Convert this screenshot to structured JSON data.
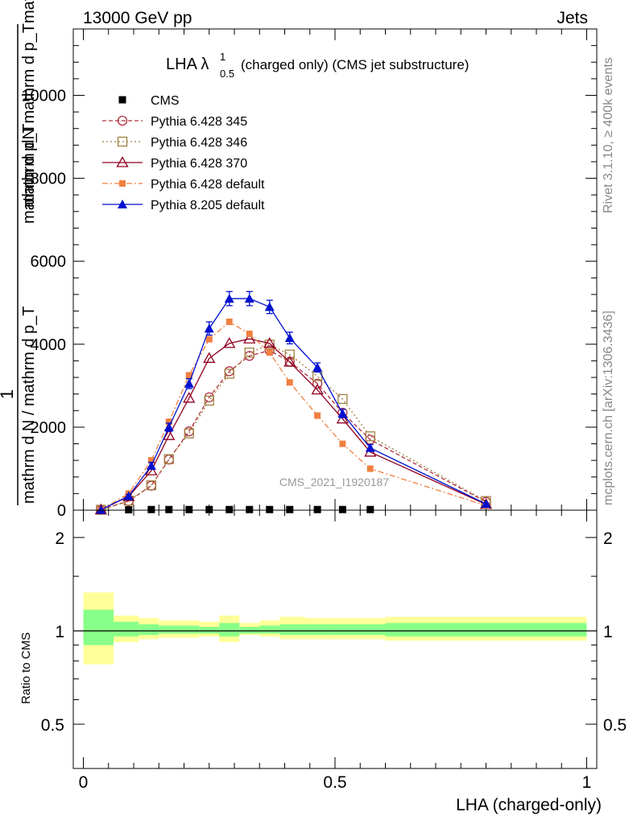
{
  "header": {
    "left": "13000 GeV pp",
    "right": "Jets"
  },
  "side_labels": {
    "rivet": "Rivet 3.1.10, ≥ 400k events",
    "mcplots": "mcplots.cern.ch [arXiv:1306.3436]"
  },
  "watermark": "CMS_2021_I1920187",
  "chart_data": [
    {
      "type": "line",
      "title": "LHA λ¹₀.₅ (charged only) (CMS jet substructure)",
      "title_parts": {
        "prefix": "LHA λ",
        "sup": "1",
        "sub": "0.5",
        "suffix": "(charged only) (CMS jet substructure)"
      },
      "ylabel_top": "mathrm dN",
      "ylabel_top2": "mathrm d p_Tmathrm d p_Tmathrm dlambda",
      "ylabel_mid": "1",
      "ylabel_bottom": "mathrm d N / mathrm d p_T",
      "xlim": [
        -0.02,
        1.02
      ],
      "ylim": [
        0,
        11600
      ],
      "yticks": [
        0,
        2000,
        4000,
        6000,
        8000,
        10000
      ],
      "ytick_labels": [
        "0",
        "2000",
        "4000",
        "6000",
        "8000",
        "10000"
      ],
      "x": [
        0.035,
        0.09,
        0.135,
        0.17,
        0.21,
        0.25,
        0.29,
        0.33,
        0.37,
        0.41,
        0.465,
        0.515,
        0.57,
        0.8
      ],
      "series": [
        {
          "name": "CMS",
          "color": "#000000",
          "marker": "square-filled",
          "dash": "none",
          "values": [
            0,
            10,
            15,
            15,
            15,
            15,
            15,
            15,
            15,
            15,
            15,
            15,
            15,
            0
          ]
        },
        {
          "name": "Pythia 6.428 345",
          "color": "#b03040",
          "marker": "circle-open",
          "dash": "5,3",
          "values": [
            10,
            220,
            590,
            1220,
            1900,
            2720,
            3350,
            3720,
            3850,
            3580,
            3050,
            2350,
            1700,
            200
          ]
        },
        {
          "name": "Pythia 6.428 346",
          "color": "#a08040",
          "marker": "square-open",
          "dash": "2,3",
          "values": [
            10,
            230,
            600,
            1230,
            1850,
            2640,
            3290,
            3800,
            3990,
            3750,
            3230,
            2680,
            1780,
            220
          ]
        },
        {
          "name": "Pythia 6.428 370",
          "color": "#900020",
          "marker": "triangle-open",
          "dash": "none",
          "values": [
            10,
            330,
            950,
            1800,
            2700,
            3660,
            4020,
            4130,
            4020,
            3570,
            2900,
            2200,
            1400,
            140
          ]
        },
        {
          "name": "Pythia 6.428 default",
          "color": "#f08040",
          "marker": "square-filled-small",
          "dash": "7,3,2,3",
          "values": [
            10,
            400,
            1200,
            2130,
            3250,
            4120,
            4540,
            4250,
            3800,
            3080,
            2280,
            1600,
            1000,
            110
          ]
        },
        {
          "name": "Pythia 8.205 default",
          "color": "#0010d0",
          "marker": "triangle-filled",
          "dash": "none",
          "values": [
            10,
            340,
            1070,
            2000,
            3050,
            4380,
            5100,
            5100,
            4900,
            4150,
            3440,
            2330,
            1500,
            150
          ],
          "errors": [
            0,
            40,
            80,
            100,
            120,
            160,
            170,
            170,
            160,
            140,
            110,
            100,
            80,
            20
          ]
        }
      ]
    },
    {
      "type": "area",
      "ylabel": "Ratio to CMS",
      "xlabel": "LHA (charged-only)",
      "xlim": [
        -0.02,
        1.02
      ],
      "ylim": [
        0.36,
        2.45
      ],
      "yticks": [
        0.5,
        1,
        2
      ],
      "ytick_labels": [
        "0.5",
        "1",
        "2"
      ],
      "xticks": [
        0,
        0.5,
        1
      ],
      "xtick_labels": [
        "0",
        "0.5",
        "1"
      ],
      "bins": [
        {
          "lo": 0.0,
          "hi": 0.06,
          "yel_lo": 0.78,
          "yel_hi": 1.33,
          "grn_lo": 0.9,
          "grn_hi": 1.17
        },
        {
          "lo": 0.06,
          "hi": 0.11,
          "yel_lo": 0.92,
          "yel_hi": 1.12,
          "grn_lo": 0.96,
          "grn_hi": 1.07
        },
        {
          "lo": 0.11,
          "hi": 0.15,
          "yel_lo": 0.94,
          "yel_hi": 1.1,
          "grn_lo": 0.97,
          "grn_hi": 1.05
        },
        {
          "lo": 0.15,
          "hi": 0.19,
          "yel_lo": 0.95,
          "yel_hi": 1.08,
          "grn_lo": 0.98,
          "grn_hi": 1.04
        },
        {
          "lo": 0.19,
          "hi": 0.23,
          "yel_lo": 0.95,
          "yel_hi": 1.08,
          "grn_lo": 0.98,
          "grn_hi": 1.04
        },
        {
          "lo": 0.23,
          "hi": 0.27,
          "yel_lo": 0.96,
          "yel_hi": 1.07,
          "grn_lo": 0.98,
          "grn_hi": 1.03
        },
        {
          "lo": 0.27,
          "hi": 0.31,
          "yel_lo": 0.92,
          "yel_hi": 1.12,
          "grn_lo": 0.96,
          "grn_hi": 1.06
        },
        {
          "lo": 0.31,
          "hi": 0.35,
          "yel_lo": 0.97,
          "yel_hi": 1.06,
          "grn_lo": 0.98,
          "grn_hi": 1.03
        },
        {
          "lo": 0.35,
          "hi": 0.39,
          "yel_lo": 0.96,
          "yel_hi": 1.08,
          "grn_lo": 0.98,
          "grn_hi": 1.04
        },
        {
          "lo": 0.39,
          "hi": 0.44,
          "yel_lo": 0.94,
          "yel_hi": 1.11,
          "grn_lo": 0.97,
          "grn_hi": 1.05
        },
        {
          "lo": 0.44,
          "hi": 0.49,
          "yel_lo": 0.94,
          "yel_hi": 1.1,
          "grn_lo": 0.97,
          "grn_hi": 1.05
        },
        {
          "lo": 0.49,
          "hi": 0.54,
          "yel_lo": 0.94,
          "yel_hi": 1.1,
          "grn_lo": 0.97,
          "grn_hi": 1.05
        },
        {
          "lo": 0.54,
          "hi": 0.6,
          "yel_lo": 0.94,
          "yel_hi": 1.1,
          "grn_lo": 0.97,
          "grn_hi": 1.05
        },
        {
          "lo": 0.6,
          "hi": 1.0,
          "yel_lo": 0.93,
          "yel_hi": 1.11,
          "grn_lo": 0.96,
          "grn_hi": 1.06
        }
      ]
    }
  ]
}
